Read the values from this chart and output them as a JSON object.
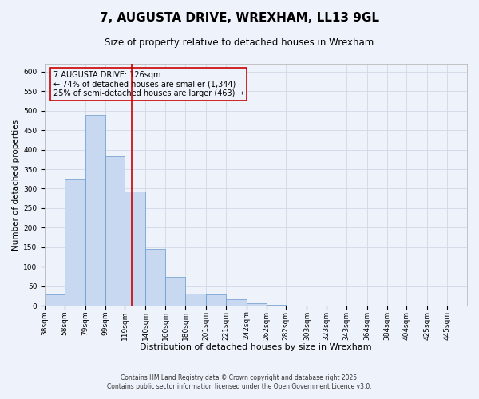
{
  "title": "7, AUGUSTA DRIVE, WREXHAM, LL13 9GL",
  "subtitle": "Size of property relative to detached houses in Wrexham",
  "xlabel": "Distribution of detached houses by size in Wrexham",
  "ylabel": "Number of detached properties",
  "bar_values": [
    30,
    325,
    490,
    382,
    293,
    145,
    75,
    32,
    30,
    17,
    7,
    2,
    1,
    0,
    0,
    0,
    0,
    0,
    0,
    1
  ],
  "bin_labels": [
    "38sqm",
    "58sqm",
    "79sqm",
    "99sqm",
    "119sqm",
    "140sqm",
    "160sqm",
    "180sqm",
    "201sqm",
    "221sqm",
    "242sqm",
    "262sqm",
    "282sqm",
    "303sqm",
    "323sqm",
    "343sqm",
    "364sqm",
    "384sqm",
    "404sqm",
    "425sqm",
    "445sqm"
  ],
  "bin_edges": [
    38,
    58,
    79,
    99,
    119,
    140,
    160,
    180,
    201,
    221,
    242,
    262,
    282,
    303,
    323,
    343,
    364,
    384,
    404,
    425,
    445
  ],
  "bar_color": "#c8d8f0",
  "bar_edge_color": "#6699cc",
  "vline_x": 126,
  "vline_color": "#cc0000",
  "annotation_line1": "7 AUGUSTA DRIVE: 126sqm",
  "annotation_line2": "← 74% of detached houses are smaller (1,344)",
  "annotation_line3": "25% of semi-detached houses are larger (463) →",
  "box_edge_color": "#cc0000",
  "ylim": [
    0,
    620
  ],
  "yticks": [
    0,
    50,
    100,
    150,
    200,
    250,
    300,
    350,
    400,
    450,
    500,
    550,
    600
  ],
  "grid_color": "#d0d8e8",
  "background_color": "#eef2fa",
  "footnote1": "Contains HM Land Registry data © Crown copyright and database right 2025.",
  "footnote2": "Contains public sector information licensed under the Open Government Licence v3.0.",
  "title_fontsize": 11,
  "subtitle_fontsize": 8.5,
  "xlabel_fontsize": 8,
  "ylabel_fontsize": 7.5,
  "tick_fontsize": 6.5,
  "annotation_fontsize": 7,
  "footnote_fontsize": 5.5
}
